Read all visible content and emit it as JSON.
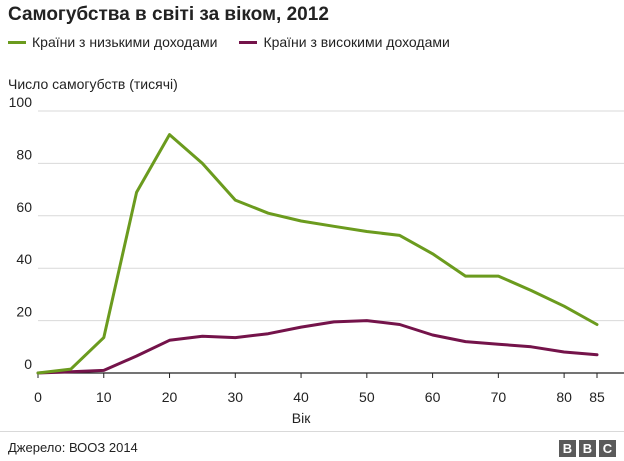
{
  "title": "Самогубства в світі за віком, 2012",
  "legend": [
    {
      "label": "Країни з низькими доходами",
      "color": "#6b9b1e"
    },
    {
      "label": "Країни з високими доходами",
      "color": "#74134a"
    }
  ],
  "source": "Джерело: ВООЗ 2014",
  "logo": [
    "B",
    "B",
    "C"
  ],
  "chart_data": {
    "type": "line",
    "title": "Самогубства в світі за віком, 2012",
    "ylabel": "Число самогубств (тисячі)",
    "xlabel": "Вік",
    "xlim": [
      0,
      85
    ],
    "ylim": [
      0,
      100
    ],
    "xticks": [
      "0",
      "10",
      "20",
      "30",
      "40",
      "50",
      "60",
      "70",
      "80",
      "85"
    ],
    "xtick_values": [
      0,
      10,
      20,
      30,
      40,
      50,
      60,
      70,
      80,
      85
    ],
    "yticks": [
      "0",
      "20",
      "40",
      "60",
      "80",
      "100"
    ],
    "ytick_values": [
      0,
      20,
      40,
      60,
      80,
      100
    ],
    "grid": true,
    "x": [
      0,
      5,
      10,
      15,
      20,
      25,
      30,
      35,
      40,
      45,
      50,
      55,
      60,
      65,
      70,
      75,
      80,
      85
    ],
    "series": [
      {
        "name": "Країни з низькими доходами",
        "color": "#6b9b1e",
        "values": [
          0,
          1.5,
          13.5,
          69,
          91,
          80,
          66,
          61,
          58,
          56,
          54,
          52.5,
          45.5,
          37,
          37,
          31.5,
          25.5,
          18.5
        ]
      },
      {
        "name": "Країни з високими доходами",
        "color": "#74134a",
        "values": [
          0,
          0.5,
          1,
          6.5,
          12.5,
          14,
          13.5,
          15,
          17.5,
          19.5,
          20,
          18.5,
          14.5,
          12,
          11,
          10,
          8,
          7
        ]
      }
    ]
  }
}
